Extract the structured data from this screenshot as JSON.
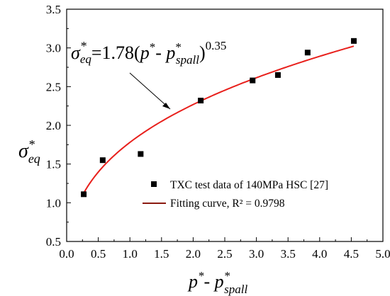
{
  "chart_data": {
    "type": "scatter",
    "xlim": [
      0.0,
      5.0
    ],
    "ylim": [
      0.5,
      3.5
    ],
    "x_ticks": [
      "0.0",
      "0.5",
      "1.0",
      "1.5",
      "2.0",
      "2.5",
      "3.0",
      "3.5",
      "4.0",
      "4.5",
      "5.0"
    ],
    "y_ticks": [
      "0.5",
      "1.0",
      "1.5",
      "2.0",
      "2.5",
      "3.0",
      "3.5"
    ],
    "xlabel": {
      "base": "p",
      "sup1": "*",
      "mid": "- p",
      "sup2": "*",
      "sub": "spall"
    },
    "ylabel": {
      "base": "σ",
      "sup": "*",
      "sub": "eq"
    },
    "series": [
      {
        "name": "TXC test data of 140MPa HSC [27]",
        "kind": "points",
        "color": "#000000",
        "x": [
          0.27,
          0.57,
          1.17,
          2.12,
          2.94,
          3.34,
          3.81,
          4.54
        ],
        "y": [
          1.11,
          1.55,
          1.63,
          2.32,
          2.58,
          2.65,
          2.94,
          3.09
        ]
      },
      {
        "name": "Fitting curve, R² = 0.9798",
        "kind": "curve",
        "color": "#e8201c",
        "legend_color": "#8b1a10",
        "equation": {
          "coef": 1.78,
          "exponent": 0.35
        },
        "x_range": [
          0.27,
          4.54
        ]
      }
    ],
    "annotation": {
      "sigma": "σ",
      "sig_sup": "*",
      "sig_sub": "eq",
      "equals": "=1.78(",
      "p1": "p",
      "p1_sup": "*",
      "minus": "- ",
      "p2": "p",
      "p2_sup": "*",
      "p2_sub": "spall",
      "close": ")",
      "exp": "0.35"
    },
    "legend_position": "lower-right",
    "grid": false
  }
}
